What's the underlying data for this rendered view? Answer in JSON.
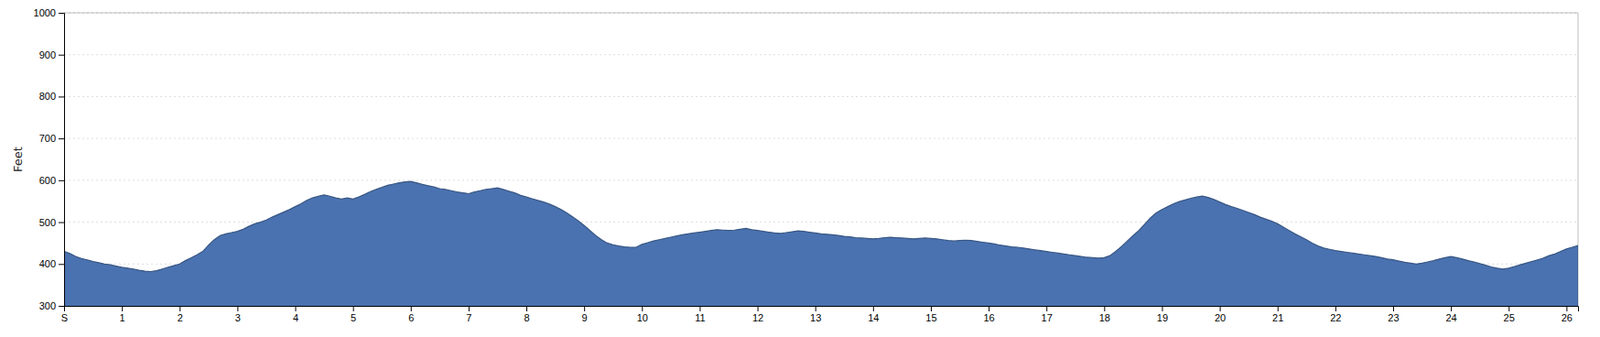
{
  "chart_data": {
    "type": "area",
    "ylabel": "Feet",
    "color": "#4a72b0",
    "grid": true,
    "xlim": [
      0,
      26.2
    ],
    "xticks": [
      {
        "value": 0,
        "label": "S"
      },
      1,
      2,
      3,
      4,
      5,
      6,
      7,
      8,
      9,
      10,
      11,
      12,
      13,
      14,
      15,
      16,
      17,
      18,
      19,
      20,
      21,
      22,
      23,
      24,
      25,
      26
    ],
    "ylim": [
      300,
      1000
    ],
    "yticks": [
      300,
      400,
      500,
      600,
      700,
      800,
      900,
      1000
    ],
    "x": [
      0,
      0.05,
      0.1,
      0.2,
      0.3,
      0.4,
      0.5,
      0.6,
      0.7,
      0.8,
      0.9,
      1.0,
      1.1,
      1.2,
      1.3,
      1.4,
      1.5,
      1.6,
      1.7,
      1.8,
      1.9,
      2.0,
      2.1,
      2.2,
      2.3,
      2.4,
      2.5,
      2.6,
      2.7,
      2.8,
      2.9,
      3.0,
      3.1,
      3.2,
      3.3,
      3.4,
      3.5,
      3.6,
      3.7,
      3.8,
      3.9,
      4.0,
      4.1,
      4.2,
      4.3,
      4.4,
      4.5,
      4.6,
      4.7,
      4.8,
      4.9,
      5.0,
      5.1,
      5.2,
      5.3,
      5.4,
      5.5,
      5.6,
      5.7,
      5.8,
      5.9,
      6.0,
      6.1,
      6.2,
      6.3,
      6.4,
      6.5,
      6.6,
      6.7,
      6.8,
      6.9,
      7.0,
      7.1,
      7.2,
      7.3,
      7.4,
      7.5,
      7.6,
      7.7,
      7.8,
      7.9,
      8.0,
      8.1,
      8.2,
      8.3,
      8.4,
      8.5,
      8.6,
      8.7,
      8.8,
      8.9,
      9.0,
      9.1,
      9.2,
      9.3,
      9.4,
      9.5,
      9.6,
      9.7,
      9.8,
      9.9,
      10.0,
      10.1,
      10.2,
      10.3,
      10.4,
      10.5,
      10.6,
      10.7,
      10.8,
      10.9,
      11.0,
      11.1,
      11.2,
      11.3,
      11.4,
      11.5,
      11.6,
      11.7,
      11.8,
      11.9,
      12.0,
      12.1,
      12.2,
      12.3,
      12.4,
      12.5,
      12.6,
      12.7,
      12.8,
      12.9,
      13.0,
      13.1,
      13.2,
      13.3,
      13.4,
      13.5,
      13.6,
      13.7,
      13.8,
      13.9,
      14.0,
      14.1,
      14.2,
      14.3,
      14.4,
      14.5,
      14.6,
      14.7,
      14.8,
      14.9,
      15.0,
      15.1,
      15.2,
      15.3,
      15.4,
      15.5,
      15.6,
      15.7,
      15.8,
      15.9,
      16.0,
      16.1,
      16.2,
      16.3,
      16.4,
      16.5,
      16.6,
      16.7,
      16.8,
      16.9,
      17.0,
      17.1,
      17.2,
      17.3,
      17.4,
      17.5,
      17.6,
      17.7,
      17.8,
      17.9,
      18.0,
      18.1,
      18.2,
      18.3,
      18.4,
      18.5,
      18.6,
      18.7,
      18.8,
      18.9,
      19.0,
      19.1,
      19.2,
      19.3,
      19.4,
      19.5,
      19.6,
      19.7,
      19.8,
      19.9,
      20.0,
      20.1,
      20.2,
      20.3,
      20.4,
      20.5,
      20.6,
      20.7,
      20.8,
      20.9,
      21.0,
      21.1,
      21.2,
      21.3,
      21.4,
      21.5,
      21.6,
      21.7,
      21.8,
      21.9,
      22.0,
      22.1,
      22.2,
      22.3,
      22.4,
      22.5,
      22.6,
      22.7,
      22.8,
      22.9,
      23.0,
      23.1,
      23.2,
      23.3,
      23.4,
      23.5,
      23.6,
      23.7,
      23.8,
      23.9,
      24.0,
      24.1,
      24.2,
      24.3,
      24.4,
      24.5,
      24.6,
      24.7,
      24.8,
      24.9,
      25.0,
      25.1,
      25.2,
      25.3,
      25.4,
      25.5,
      25.6,
      25.7,
      25.8,
      25.9,
      26.0,
      26.1,
      26.2
    ],
    "values": [
      430,
      428,
      425,
      418,
      413,
      410,
      406,
      403,
      400,
      398,
      395,
      392,
      390,
      388,
      385,
      383,
      382,
      384,
      388,
      392,
      396,
      400,
      408,
      415,
      422,
      430,
      445,
      458,
      468,
      472,
      475,
      478,
      483,
      490,
      496,
      500,
      505,
      512,
      518,
      524,
      530,
      537,
      544,
      552,
      558,
      562,
      565,
      562,
      558,
      555,
      558,
      555,
      560,
      566,
      573,
      578,
      583,
      588,
      591,
      594,
      596,
      597,
      594,
      590,
      587,
      584,
      580,
      578,
      575,
      572,
      570,
      568,
      572,
      575,
      578,
      580,
      582,
      578,
      574,
      570,
      564,
      560,
      556,
      552,
      548,
      543,
      537,
      530,
      522,
      513,
      503,
      492,
      480,
      468,
      458,
      450,
      446,
      443,
      441,
      440,
      440,
      447,
      451,
      455,
      458,
      461,
      464,
      467,
      470,
      472,
      474,
      476,
      478,
      480,
      482,
      481,
      480,
      481,
      483,
      485,
      482,
      480,
      478,
      476,
      474,
      473,
      475,
      477,
      479,
      478,
      476,
      474,
      472,
      471,
      470,
      468,
      466,
      465,
      463,
      462,
      461,
      460,
      461,
      463,
      464,
      463,
      462,
      461,
      460,
      461,
      462,
      461,
      460,
      458,
      456,
      455,
      456,
      457,
      456,
      454,
      452,
      450,
      448,
      445,
      443,
      441,
      440,
      438,
      436,
      434,
      432,
      430,
      428,
      426,
      424,
      422,
      420,
      418,
      416,
      415,
      414,
      415,
      420,
      430,
      442,
      455,
      468,
      480,
      495,
      510,
      522,
      530,
      537,
      544,
      549,
      553,
      557,
      560,
      562,
      559,
      554,
      548,
      542,
      537,
      533,
      528,
      523,
      518,
      512,
      507,
      502,
      496,
      488,
      480,
      472,
      465,
      458,
      450,
      443,
      438,
      435,
      432,
      430,
      428,
      426,
      424,
      422,
      420,
      418,
      415,
      412,
      410,
      407,
      404,
      402,
      400,
      402,
      405,
      408,
      412,
      415,
      418,
      415,
      412,
      408,
      405,
      401,
      397,
      393,
      390,
      388,
      390,
      394,
      398,
      402,
      406,
      410,
      414,
      420,
      424,
      430,
      436,
      440,
      444
    ]
  }
}
